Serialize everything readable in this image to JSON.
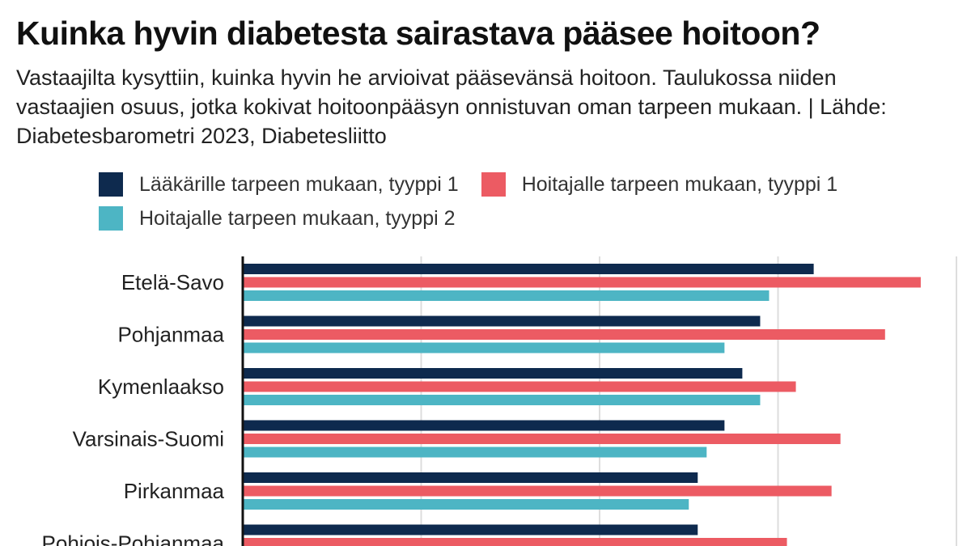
{
  "title": "Kuinka hyvin diabetesta sairastava pääsee hoitoon?",
  "subtitle": "Vastaajilta kysyttiin, kuinka hyvin he arvioivat pääsevänsä hoitoon. Taulukossa niiden vastaajien osuus, jotka kokivat hoitoonpääsyn onnistuvan oman tarpeen mukaan. | Lähde: Diabetesbarometri 2023, Diabetesliitto",
  "legend": [
    {
      "label": "Lääkärille tarpeen mukaan, tyyppi 1",
      "color": "#0e2a4e"
    },
    {
      "label": "Hoitajalle tarpeen mukaan, tyyppi 1",
      "color": "#ec5b63"
    },
    {
      "label": "Hoitajalle tarpeen mukaan, tyyppi 2",
      "color": "#4db5c4"
    }
  ],
  "chart_data": {
    "type": "bar",
    "orientation": "horizontal",
    "title": "Kuinka hyvin diabetesta sairastava pääsee hoitoon?",
    "categories": [
      "Etelä-Savo",
      "Pohjanmaa",
      "Kymenlaakso",
      "Varsinais-Suomi",
      "Pirkanmaa",
      "Pohjois-Pohjanmaa"
    ],
    "series": [
      {
        "name": "Lääkärille tarpeen mukaan, tyyppi 1",
        "color": "#0e2a4e",
        "values": [
          64,
          58,
          56,
          54,
          51,
          51
        ]
      },
      {
        "name": "Hoitajalle tarpeen mukaan, tyyppi 1",
        "color": "#ec5b63",
        "values": [
          76,
          72,
          62,
          67,
          66,
          61
        ]
      },
      {
        "name": "Hoitajalle tarpeen mukaan, tyyppi 2",
        "color": "#4db5c4",
        "values": [
          59,
          54,
          58,
          52,
          50,
          null
        ]
      }
    ],
    "xlim": [
      0,
      80
    ],
    "gridlines": [
      20,
      40,
      60,
      80
    ],
    "grid": true,
    "legend_position": "top"
  }
}
